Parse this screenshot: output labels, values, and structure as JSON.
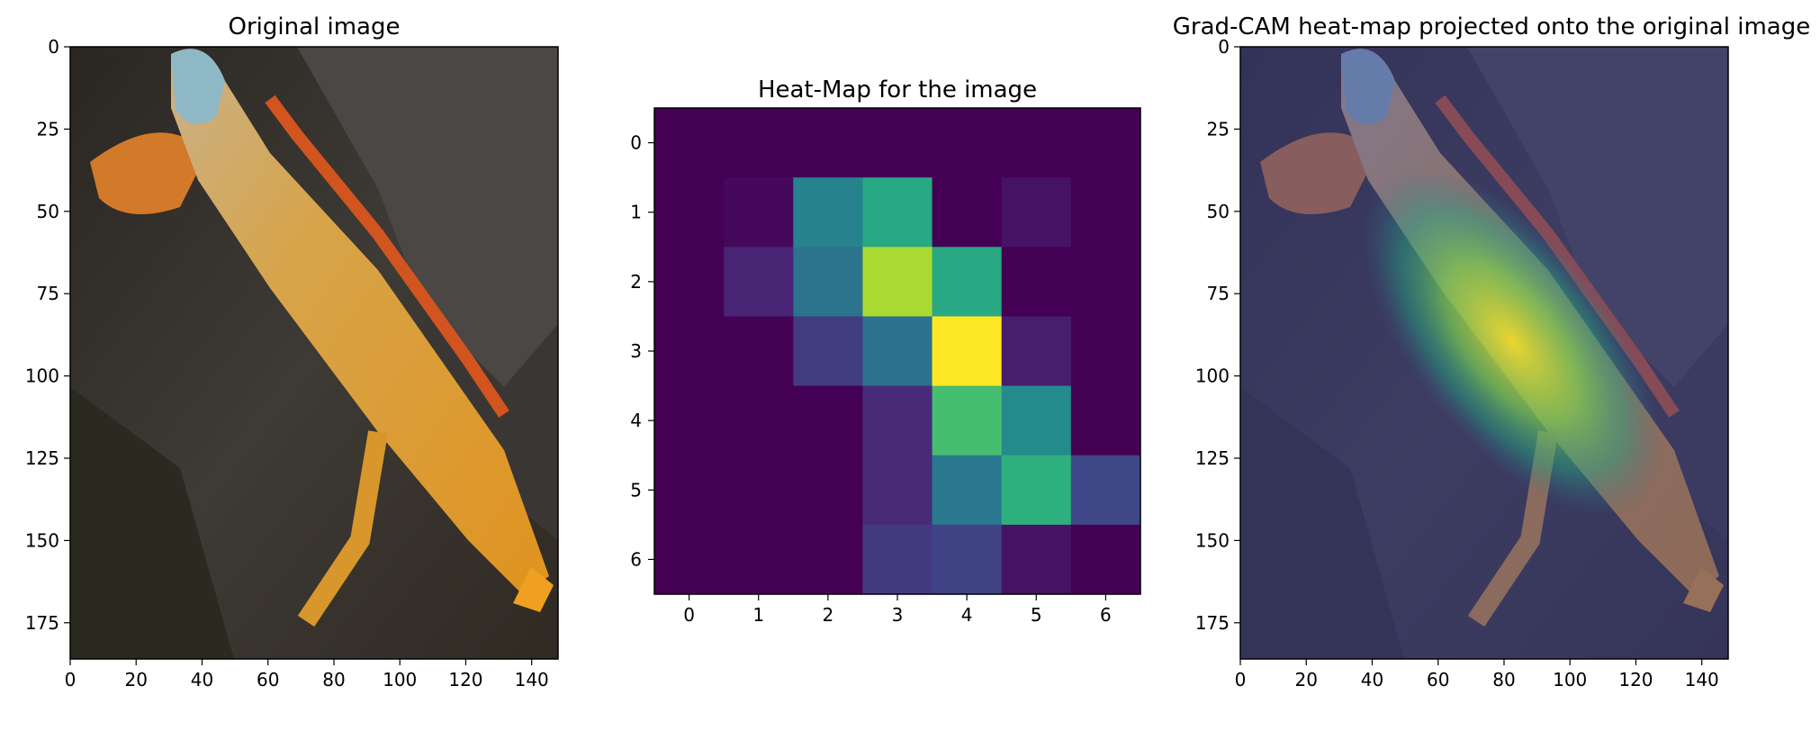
{
  "chart_data": [
    {
      "type": "image",
      "title": "Original image",
      "xlim": [
        0,
        148
      ],
      "ylim": [
        186,
        0
      ],
      "xticks": [
        0,
        20,
        40,
        60,
        80,
        100,
        120,
        140
      ],
      "yticks": [
        0,
        25,
        50,
        75,
        100,
        125,
        150,
        175
      ]
    },
    {
      "type": "heatmap",
      "title": "Heat-Map for the image",
      "colormap": "viridis",
      "x": [
        0,
        1,
        2,
        3,
        4,
        5,
        6
      ],
      "y": [
        0,
        1,
        2,
        3,
        4,
        5,
        6
      ],
      "values": [
        [
          0.0,
          0.0,
          0.0,
          0.0,
          0.0,
          0.0,
          0.0
        ],
        [
          0.0,
          0.02,
          0.45,
          0.6,
          0.0,
          0.05,
          0.0
        ],
        [
          0.0,
          0.1,
          0.38,
          0.87,
          0.6,
          0.0,
          0.0
        ],
        [
          0.0,
          0.0,
          0.18,
          0.37,
          1.0,
          0.08,
          0.0
        ],
        [
          0.0,
          0.0,
          0.0,
          0.12,
          0.7,
          0.48,
          0.0
        ],
        [
          0.0,
          0.0,
          0.0,
          0.12,
          0.4,
          0.63,
          0.22
        ],
        [
          0.0,
          0.0,
          0.0,
          0.17,
          0.2,
          0.05,
          0.0
        ]
      ],
      "xticks": [
        0,
        1,
        2,
        3,
        4,
        5,
        6
      ],
      "yticks": [
        0,
        1,
        2,
        3,
        4,
        5,
        6
      ]
    },
    {
      "type": "image",
      "title": "Grad-CAM heat-map projected onto the original image",
      "xlim": [
        0,
        148
      ],
      "ylim": [
        186,
        0
      ],
      "xticks": [
        0,
        20,
        40,
        60,
        80,
        100,
        120,
        140
      ],
      "yticks": [
        0,
        25,
        50,
        75,
        100,
        125,
        150,
        175
      ]
    }
  ]
}
